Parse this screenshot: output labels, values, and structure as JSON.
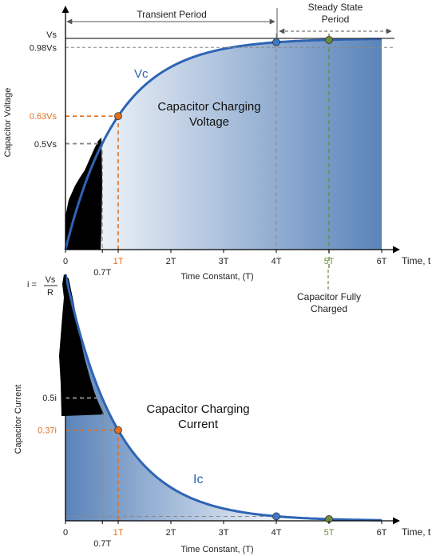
{
  "colors": {
    "curve": "#2f64b4",
    "fill_dark": "#5a84ba",
    "fill_light": "#ffffff",
    "orange": "#e07020",
    "green": "#6e8c3c",
    "blue_dot": "#3c78c8",
    "axis": "#000000",
    "dash": "#888888",
    "text": "#222222"
  },
  "chart_data": [
    {
      "type": "area",
      "title": "Capacitor Charging Voltage",
      "title_lines": [
        "Capacitor Charging",
        "Voltage"
      ],
      "xlabel": "Time Constant, (T)",
      "ylabel": "Capacitor Voltage",
      "x_axis_end_label": "Time, t",
      "xlim": [
        0,
        6
      ],
      "ylim": [
        0,
        1
      ],
      "x_tick_labels": [
        {
          "x": 0,
          "label": "0"
        },
        {
          "x": 0.7,
          "label": "0.7T"
        },
        {
          "x": 1,
          "label": "1T"
        },
        {
          "x": 2,
          "label": "2T"
        },
        {
          "x": 3,
          "label": "3T"
        },
        {
          "x": 4,
          "label": "4T"
        },
        {
          "x": 5,
          "label": "5T"
        },
        {
          "x": 6,
          "label": "6T"
        }
      ],
      "y_tick_labels": [
        {
          "y": 1.0,
          "label": "Vs"
        },
        {
          "y": 0.98,
          "label": "0.98Vs"
        },
        {
          "y": 0.632,
          "label": "0.63Vs"
        },
        {
          "y": 0.5,
          "label": "0.5Vs"
        }
      ],
      "series": [
        {
          "name": "Vc",
          "x": [
            0,
            0.5,
            0.7,
            1,
            1.5,
            2,
            2.5,
            3,
            3.5,
            4,
            4.5,
            5,
            5.5,
            6
          ],
          "y": [
            0,
            0.393,
            0.503,
            0.632,
            0.777,
            0.865,
            0.918,
            0.95,
            0.97,
            0.982,
            0.989,
            0.993,
            0.996,
            0.998
          ]
        }
      ],
      "markers": [
        {
          "x": 1,
          "y": 0.632,
          "color": "orange"
        },
        {
          "x": 4,
          "y": 0.982,
          "color": "blue"
        },
        {
          "x": 5,
          "y": 0.993,
          "color": "green"
        }
      ],
      "period_labels": {
        "transient": "Transient Period",
        "steady": [
          "Steady State",
          "Period"
        ]
      },
      "fully_charged": [
        "Capacitor Fully",
        "Charged"
      ]
    },
    {
      "type": "area",
      "title": "Capacitor Charging Current",
      "title_lines": [
        "Capacitor Charging",
        "Current"
      ],
      "xlabel": "Time Constant, (T)",
      "ylabel": "Capacitor Current",
      "x_axis_end_label": "Time, t",
      "xlim": [
        0,
        6
      ],
      "ylim": [
        0,
        1
      ],
      "x_tick_labels": [
        {
          "x": 0,
          "label": "0"
        },
        {
          "x": 0.7,
          "label": "0.7T"
        },
        {
          "x": 1,
          "label": "1T"
        },
        {
          "x": 2,
          "label": "2T"
        },
        {
          "x": 3,
          "label": "3T"
        },
        {
          "x": 4,
          "label": "4T"
        },
        {
          "x": 5,
          "label": "5T"
        },
        {
          "x": 6,
          "label": "6T"
        }
      ],
      "y_tick_labels": [
        {
          "y": 0.5,
          "label": "0.5i"
        },
        {
          "y": 0.368,
          "label": "0.37i"
        }
      ],
      "i_max_label": {
        "prefix": "i =",
        "numerator": "Vs",
        "denominator": "R"
      },
      "series": [
        {
          "name": "Ic",
          "x": [
            0,
            0.5,
            0.7,
            1,
            1.5,
            2,
            2.5,
            3,
            3.5,
            4,
            4.5,
            5,
            5.5,
            6
          ],
          "y": [
            1,
            0.607,
            0.497,
            0.368,
            0.223,
            0.135,
            0.082,
            0.05,
            0.03,
            0.018,
            0.011,
            0.007,
            0.004,
            0.002
          ]
        }
      ],
      "markers": [
        {
          "x": 1,
          "y": 0.368,
          "color": "orange"
        },
        {
          "x": 4,
          "y": 0.018,
          "color": "blue"
        },
        {
          "x": 5,
          "y": 0.007,
          "color": "green"
        }
      ]
    }
  ]
}
